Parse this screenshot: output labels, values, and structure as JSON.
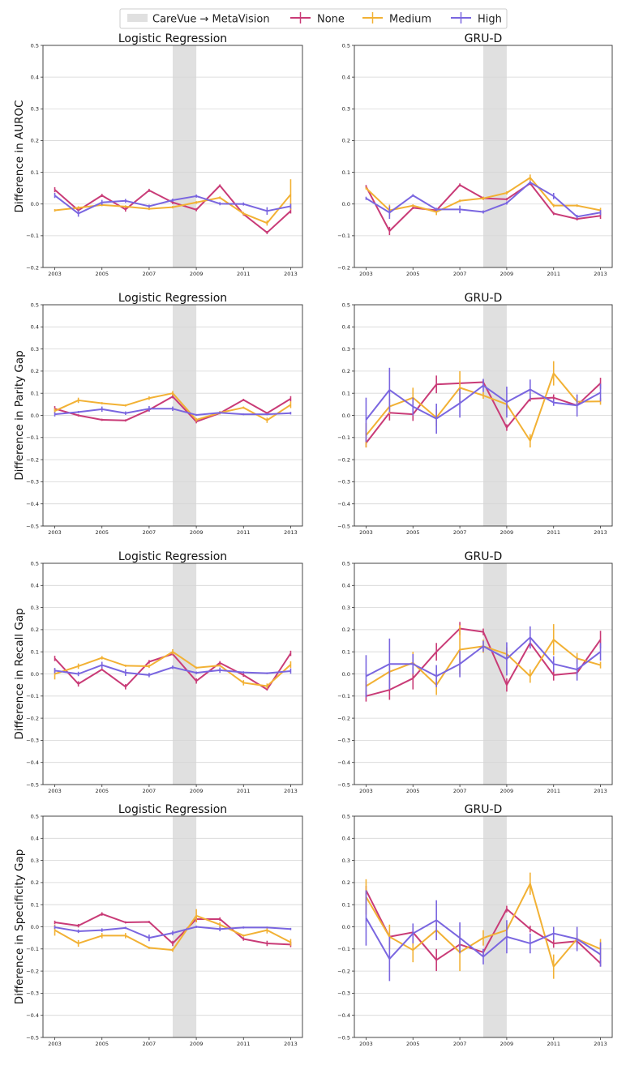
{
  "legend": {
    "items": [
      {
        "label": "CareVue → MetaVision",
        "kind": "patch",
        "color": "#e0e0e0"
      },
      {
        "label": "None",
        "kind": "line",
        "color": "#c93b77"
      },
      {
        "label": "Medium",
        "kind": "line",
        "color": "#f2b134"
      },
      {
        "label": "High",
        "kind": "line",
        "color": "#7a66e0"
      }
    ]
  },
  "colors": {
    "None": "#c93b77",
    "Medium": "#f2b134",
    "High": "#7a66e0",
    "shade": "#e0e0e0",
    "grid": "#d6d6d6"
  },
  "chart_data": [
    {
      "type": "line",
      "title": "Logistic Regression",
      "ylabel": "Difference in AUROC",
      "x": [
        2003,
        2004,
        2005,
        2006,
        2007,
        2008,
        2009,
        2010,
        2011,
        2012,
        2013
      ],
      "xticks": [
        "2003",
        "2005",
        "2007",
        "2009",
        "2011",
        "2013"
      ],
      "yticks": [
        "−0.2",
        "−0.1",
        "0.0",
        "0.1",
        "0.2",
        "0.3",
        "0.4",
        "0.5"
      ],
      "ylim": [
        -0.2,
        0.5
      ],
      "shade": [
        2008,
        2009
      ],
      "grid": true,
      "series": [
        {
          "name": "None",
          "values": [
            0.045,
            -0.02,
            0.027,
            -0.017,
            0.043,
            0.005,
            -0.018,
            0.058,
            -0.032,
            -0.09,
            -0.022
          ],
          "err": [
            0.008,
            0.01,
            0.005,
            0.007,
            0.005,
            0.005,
            0.005,
            0.004,
            0.005,
            0.005,
            0.008
          ]
        },
        {
          "name": "Medium",
          "values": [
            -0.02,
            -0.012,
            -0.003,
            -0.008,
            -0.015,
            -0.01,
            0.005,
            0.02,
            -0.03,
            -0.06,
            0.03
          ],
          "err": [
            0.004,
            0.005,
            0.004,
            0.004,
            0.004,
            0.004,
            0.004,
            0.004,
            0.005,
            0.008,
            0.048
          ]
        },
        {
          "name": "High",
          "values": [
            0.027,
            -0.03,
            0.005,
            0.01,
            -0.007,
            0.012,
            0.025,
            0.001,
            0.0,
            -0.022,
            -0.007
          ],
          "err": [
            0.008,
            0.01,
            0.008,
            0.006,
            0.005,
            0.005,
            0.005,
            0.005,
            0.005,
            0.012,
            0.008
          ]
        }
      ]
    },
    {
      "type": "line",
      "title": "GRU-D",
      "ylabel": "",
      "x": [
        2003,
        2004,
        2005,
        2006,
        2007,
        2008,
        2009,
        2010,
        2011,
        2012,
        2013
      ],
      "xticks": [
        "2003",
        "2005",
        "2007",
        "2009",
        "2011",
        "2013"
      ],
      "yticks": [
        "−0.2",
        "−0.1",
        "0.0",
        "0.1",
        "0.2",
        "0.3",
        "0.4",
        "0.5"
      ],
      "ylim": [
        -0.2,
        0.5
      ],
      "shade": [
        2008,
        2009
      ],
      "grid": true,
      "series": [
        {
          "name": "None",
          "values": [
            0.055,
            -0.085,
            -0.012,
            -0.02,
            0.06,
            0.018,
            0.015,
            0.065,
            -0.03,
            -0.047,
            -0.037
          ],
          "err": [
            0.005,
            0.013,
            0.004,
            0.005,
            0.005,
            0.005,
            0.004,
            0.005,
            0.005,
            0.005,
            0.01
          ]
        },
        {
          "name": "Medium",
          "values": [
            0.05,
            -0.02,
            -0.005,
            -0.025,
            0.01,
            0.018,
            0.035,
            0.083,
            -0.005,
            -0.005,
            -0.02
          ],
          "err": [
            0.004,
            0.018,
            0.004,
            0.01,
            0.004,
            0.005,
            0.005,
            0.01,
            0.005,
            0.004,
            0.008
          ]
        },
        {
          "name": "High",
          "values": [
            0.018,
            -0.027,
            0.027,
            -0.017,
            -0.017,
            -0.025,
            0.003,
            0.068,
            0.025,
            -0.04,
            -0.027
          ],
          "err": [
            0.005,
            0.02,
            0.004,
            0.005,
            0.012,
            0.005,
            0.005,
            0.005,
            0.01,
            0.006,
            0.008
          ]
        }
      ]
    },
    {
      "type": "line",
      "title": "Logistic Regression",
      "ylabel": "Difference in Parity Gap",
      "x": [
        2003,
        2004,
        2005,
        2006,
        2007,
        2008,
        2009,
        2010,
        2011,
        2012,
        2013
      ],
      "xticks": [
        "2003",
        "2005",
        "2007",
        "2009",
        "2011",
        "2013"
      ],
      "yticks": [
        "−0.5",
        "−0.4",
        "−0.3",
        "−0.2",
        "−0.1",
        "0.0",
        "0.1",
        "0.2",
        "0.3",
        "0.4",
        "0.5"
      ],
      "ylim": [
        -0.5,
        0.5
      ],
      "shade": [
        2008,
        2009
      ],
      "grid": true,
      "series": [
        {
          "name": "None",
          "values": [
            0.03,
            0.0,
            -0.02,
            -0.023,
            0.025,
            0.085,
            -0.028,
            0.01,
            0.07,
            0.01,
            0.075
          ],
          "err": [
            0.012,
            0.005,
            0.005,
            0.005,
            0.008,
            0.008,
            0.008,
            0.005,
            0.005,
            0.005,
            0.012
          ]
        },
        {
          "name": "Medium",
          "values": [
            0.02,
            0.068,
            0.055,
            0.045,
            0.078,
            0.1,
            -0.02,
            0.012,
            0.035,
            -0.022,
            0.048
          ],
          "err": [
            0.012,
            0.012,
            0.005,
            0.005,
            0.008,
            0.01,
            0.008,
            0.008,
            0.005,
            0.012,
            0.015
          ]
        },
        {
          "name": "High",
          "values": [
            0.005,
            0.015,
            0.028,
            0.01,
            0.03,
            0.03,
            0.002,
            0.012,
            0.005,
            0.005,
            0.01
          ],
          "err": [
            0.01,
            0.005,
            0.012,
            0.008,
            0.012,
            0.01,
            0.004,
            0.005,
            0.004,
            0.004,
            0.006
          ]
        }
      ]
    },
    {
      "type": "line",
      "title": "GRU-D",
      "ylabel": "",
      "x": [
        2003,
        2004,
        2005,
        2006,
        2007,
        2008,
        2009,
        2010,
        2011,
        2012,
        2013
      ],
      "xticks": [
        "2003",
        "2005",
        "2007",
        "2009",
        "2011",
        "2013"
      ],
      "yticks": [
        "−0.5",
        "−0.4",
        "−0.3",
        "−0.2",
        "−0.1",
        "0.0",
        "0.1",
        "0.2",
        "0.3",
        "0.4",
        "0.5"
      ],
      "ylim": [
        -0.5,
        0.5
      ],
      "shade": [
        2008,
        2009
      ],
      "grid": true,
      "series": [
        {
          "name": "None",
          "values": [
            -0.125,
            0.012,
            0.005,
            0.14,
            0.145,
            0.15,
            -0.055,
            0.075,
            0.08,
            0.045,
            0.145
          ],
          "err": [
            0.02,
            0.035,
            0.03,
            0.04,
            0.01,
            0.01,
            0.015,
            0.012,
            0.015,
            0.01,
            0.025
          ]
        },
        {
          "name": "Medium",
          "values": [
            -0.09,
            0.04,
            0.08,
            -0.01,
            0.125,
            0.09,
            0.05,
            -0.115,
            0.19,
            0.062,
            0.063
          ],
          "err": [
            0.055,
            0.035,
            0.045,
            0.04,
            0.075,
            0.015,
            0.02,
            0.03,
            0.055,
            0.03,
            0.015
          ]
        },
        {
          "name": "High",
          "values": [
            -0.02,
            0.115,
            0.04,
            -0.015,
            0.055,
            0.135,
            0.06,
            0.117,
            0.058,
            0.045,
            0.103
          ],
          "err": [
            0.1,
            0.1,
            0.04,
            0.068,
            0.065,
            0.03,
            0.07,
            0.045,
            0.015,
            0.05,
            0.04
          ]
        }
      ]
    },
    {
      "type": "line",
      "title": "Logistic Regression",
      "ylabel": "Difference in Recall Gap",
      "x": [
        2003,
        2004,
        2005,
        2006,
        2007,
        2008,
        2009,
        2010,
        2011,
        2012,
        2013
      ],
      "xticks": [
        "2003",
        "2005",
        "2007",
        "2009",
        "2011",
        "2013"
      ],
      "yticks": [
        "−0.5",
        "−0.4",
        "−0.3",
        "−0.2",
        "−0.1",
        "0.0",
        "0.1",
        "0.2",
        "0.3",
        "0.4",
        "0.5"
      ],
      "ylim": [
        -0.5,
        0.5
      ],
      "shade": [
        2008,
        2009
      ],
      "grid": true,
      "series": [
        {
          "name": "None",
          "values": [
            0.07,
            -0.045,
            0.02,
            -0.058,
            0.055,
            0.09,
            -0.032,
            0.05,
            -0.005,
            -0.07,
            0.093
          ],
          "err": [
            0.012,
            0.012,
            0.005,
            0.012,
            0.008,
            0.006,
            0.012,
            0.008,
            0.008,
            0.005,
            0.012
          ]
        },
        {
          "name": "Medium",
          "values": [
            0.0,
            0.035,
            0.073,
            0.037,
            0.035,
            0.1,
            0.028,
            0.038,
            -0.04,
            -0.055,
            0.042
          ],
          "err": [
            0.025,
            0.012,
            0.008,
            0.005,
            0.008,
            0.012,
            0.005,
            0.005,
            0.012,
            0.012,
            0.015
          ]
        },
        {
          "name": "High",
          "values": [
            0.015,
            0.0,
            0.04,
            0.006,
            -0.005,
            0.03,
            0.005,
            0.017,
            0.007,
            0.003,
            0.013
          ],
          "err": [
            0.012,
            0.01,
            0.015,
            0.015,
            0.01,
            0.008,
            0.006,
            0.012,
            0.005,
            0.004,
            0.012
          ]
        }
      ]
    },
    {
      "type": "line",
      "title": "GRU-D",
      "ylabel": "",
      "x": [
        2003,
        2004,
        2005,
        2006,
        2007,
        2008,
        2009,
        2010,
        2011,
        2012,
        2013
      ],
      "xticks": [
        "2003",
        "2005",
        "2007",
        "2009",
        "2011",
        "2013"
      ],
      "yticks": [
        "−0.5",
        "−0.4",
        "−0.3",
        "−0.2",
        "−0.1",
        "0.0",
        "0.1",
        "0.2",
        "0.3",
        "0.4",
        "0.5"
      ],
      "ylim": [
        -0.5,
        0.5
      ],
      "shade": [
        2008,
        2009
      ],
      "grid": true,
      "series": [
        {
          "name": "None",
          "values": [
            -0.1,
            -0.072,
            -0.02,
            0.1,
            0.205,
            0.19,
            -0.05,
            0.14,
            -0.005,
            0.005,
            0.155
          ],
          "err": [
            0.025,
            0.045,
            0.05,
            0.04,
            0.03,
            0.015,
            0.03,
            0.025,
            0.025,
            0.012,
            0.04
          ]
        },
        {
          "name": "Medium",
          "values": [
            -0.055,
            0.01,
            0.05,
            -0.05,
            0.11,
            0.125,
            0.09,
            -0.01,
            0.155,
            0.07,
            0.04
          ],
          "err": [
            0.025,
            0.025,
            0.05,
            0.045,
            0.11,
            0.03,
            0.03,
            0.03,
            0.07,
            0.025,
            0.015
          ]
        },
        {
          "name": "High",
          "values": [
            -0.01,
            0.045,
            0.045,
            -0.01,
            0.045,
            0.125,
            0.068,
            0.165,
            0.045,
            0.02,
            0.1
          ],
          "err": [
            0.095,
            0.115,
            0.045,
            0.05,
            0.06,
            0.025,
            0.075,
            0.05,
            0.035,
            0.05,
            0.04
          ]
        }
      ]
    },
    {
      "type": "line",
      "title": "Logistic Regression",
      "ylabel": "Difference in Specificity Gap",
      "x": [
        2003,
        2004,
        2005,
        2006,
        2007,
        2008,
        2009,
        2010,
        2011,
        2012,
        2013
      ],
      "xticks": [
        "2003",
        "2005",
        "2007",
        "2009",
        "2011",
        "2013"
      ],
      "yticks": [
        "−0.5",
        "−0.4",
        "−0.3",
        "−0.2",
        "−0.1",
        "0.0",
        "0.1",
        "0.2",
        "0.3",
        "0.4",
        "0.5"
      ],
      "ylim": [
        -0.5,
        0.5
      ],
      "shade": [
        2008,
        2009
      ],
      "grid": true,
      "series": [
        {
          "name": "None",
          "values": [
            0.02,
            0.005,
            0.058,
            0.02,
            0.022,
            -0.075,
            0.035,
            0.035,
            -0.055,
            -0.075,
            -0.08
          ],
          "err": [
            0.008,
            0.008,
            0.008,
            0.005,
            0.005,
            0.012,
            0.012,
            0.008,
            0.008,
            0.012,
            0.012
          ]
        },
        {
          "name": "Medium",
          "values": [
            -0.015,
            -0.075,
            -0.04,
            -0.04,
            -0.095,
            -0.105,
            0.05,
            0.01,
            -0.04,
            -0.015,
            -0.07
          ],
          "err": [
            0.025,
            0.015,
            0.012,
            0.012,
            0.005,
            0.008,
            0.03,
            0.01,
            0.005,
            0.015,
            0.015
          ]
        },
        {
          "name": "High",
          "values": [
            -0.002,
            -0.02,
            -0.015,
            -0.005,
            -0.05,
            -0.028,
            0.0,
            -0.01,
            -0.003,
            -0.003,
            -0.01
          ],
          "err": [
            0.008,
            0.008,
            0.008,
            0.005,
            0.015,
            0.01,
            0.005,
            0.01,
            0.005,
            0.004,
            0.005
          ]
        }
      ]
    },
    {
      "type": "line",
      "title": "GRU-D",
      "ylabel": "",
      "x": [
        2003,
        2004,
        2005,
        2006,
        2007,
        2008,
        2009,
        2010,
        2011,
        2012,
        2013
      ],
      "xticks": [
        "2003",
        "2005",
        "2007",
        "2009",
        "2011",
        "2013"
      ],
      "yticks": [
        "−0.5",
        "−0.4",
        "−0.3",
        "−0.2",
        "−0.1",
        "0.0",
        "0.1",
        "0.2",
        "0.3",
        "0.4",
        "0.5"
      ],
      "ylim": [
        -0.5,
        0.5
      ],
      "shade": [
        2008,
        2009
      ],
      "grid": true,
      "series": [
        {
          "name": "None",
          "values": [
            0.165,
            -0.045,
            -0.025,
            -0.15,
            -0.08,
            -0.115,
            0.08,
            -0.01,
            -0.075,
            -0.065,
            -0.165
          ],
          "err": [
            0.02,
            0.01,
            0.02,
            0.05,
            0.015,
            0.015,
            0.015,
            0.015,
            0.02,
            0.015,
            0.015
          ]
        },
        {
          "name": "Medium",
          "values": [
            0.135,
            -0.045,
            -0.105,
            -0.015,
            -0.115,
            -0.05,
            -0.015,
            0.195,
            -0.18,
            -0.055,
            -0.1
          ],
          "err": [
            0.08,
            0.055,
            0.055,
            0.045,
            0.085,
            0.035,
            0.03,
            0.05,
            0.055,
            0.025,
            0.045
          ]
        },
        {
          "name": "High",
          "values": [
            0.04,
            -0.145,
            -0.03,
            0.03,
            -0.05,
            -0.135,
            -0.045,
            -0.075,
            -0.03,
            -0.055,
            -0.125
          ],
          "err": [
            0.125,
            0.1,
            0.045,
            0.09,
            0.07,
            0.035,
            0.075,
            0.045,
            0.03,
            0.055,
            0.055
          ]
        }
      ]
    }
  ]
}
